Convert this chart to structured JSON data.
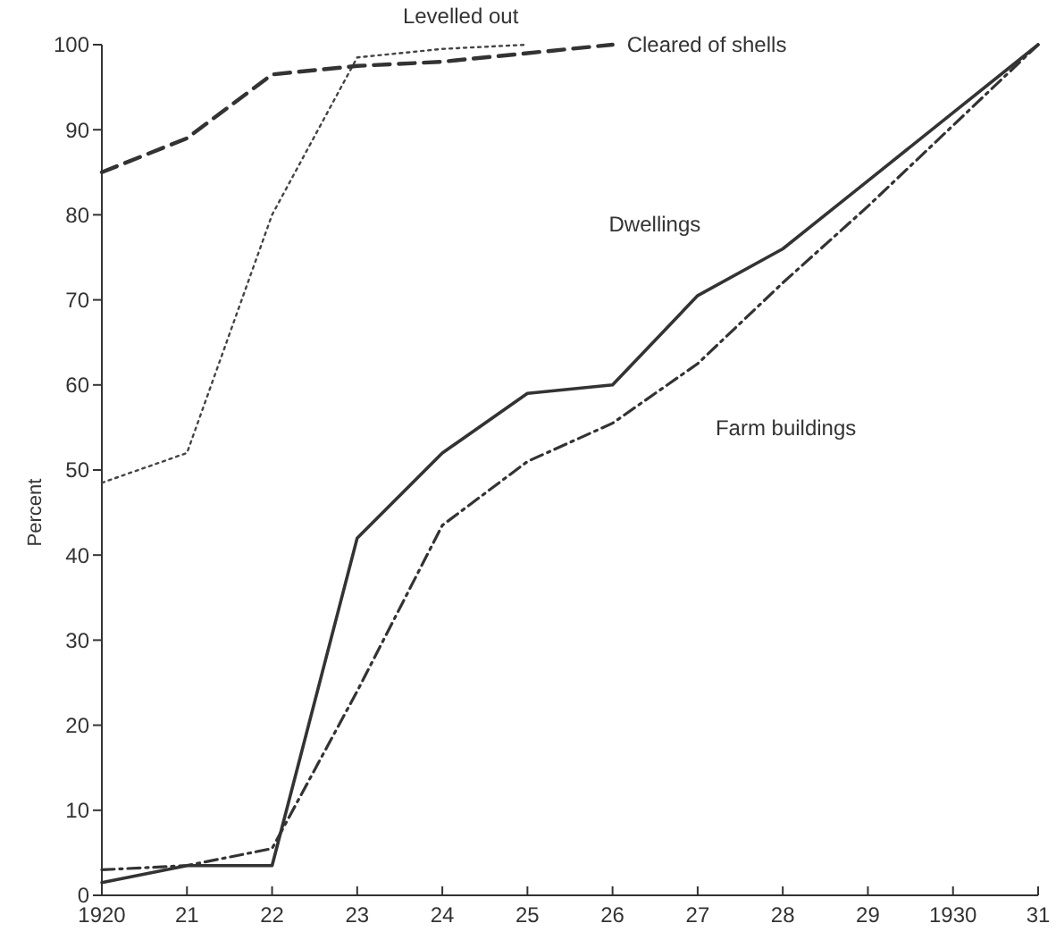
{
  "chart_data": {
    "type": "line",
    "ylabel": "Percent",
    "x": [
      1920,
      1921,
      1922,
      1923,
      1924,
      1925,
      1926,
      1927,
      1928,
      1929,
      1930,
      1931
    ],
    "series": [
      {
        "name": "Levelled out",
        "color": "#444444",
        "line_style": "dotted",
        "x": [
          1920,
          1921,
          1922,
          1923,
          1924,
          1925
        ],
        "values": [
          48.5,
          52,
          80,
          98.5,
          99.5,
          100
        ]
      },
      {
        "name": "Cleared of shells",
        "color": "#333333",
        "line_style": "dashed",
        "x": [
          1920,
          1921,
          1922,
          1923,
          1924,
          1925,
          1926
        ],
        "values": [
          85,
          89,
          96.5,
          97.5,
          98,
          99,
          100
        ]
      },
      {
        "name": "Dwellings",
        "color": "#333333",
        "line_style": "solid",
        "values": [
          1.5,
          3.5,
          3.5,
          42,
          52,
          59,
          60,
          70.5,
          76,
          84,
          92,
          100
        ]
      },
      {
        "name": "Farm buildings",
        "color": "#333333",
        "line_style": "dashdot",
        "values": [
          3,
          3.5,
          5.5,
          24,
          43.5,
          51,
          55.5,
          62.5,
          72,
          81,
          90.5,
          100
        ]
      }
    ],
    "xlim": [
      1920,
      1931
    ],
    "xticks": [
      1920,
      {
        "value": 1921,
        "label": "21"
      },
      {
        "value": 1922,
        "label": "22"
      },
      {
        "value": 1923,
        "label": "23"
      },
      {
        "value": 1924,
        "label": "24"
      },
      {
        "value": 1925,
        "label": "25"
      },
      {
        "value": 1926,
        "label": "26"
      },
      {
        "value": 1927,
        "label": "27"
      },
      {
        "value": 1928,
        "label": "28"
      },
      {
        "value": 1929,
        "label": "29"
      },
      1930,
      {
        "value": 1931,
        "label": "31"
      }
    ],
    "ylim": [
      0,
      100
    ],
    "yticks": [
      0,
      10,
      20,
      30,
      40,
      50,
      60,
      70,
      80,
      90,
      100
    ],
    "grid": false,
    "marker": "none"
  }
}
